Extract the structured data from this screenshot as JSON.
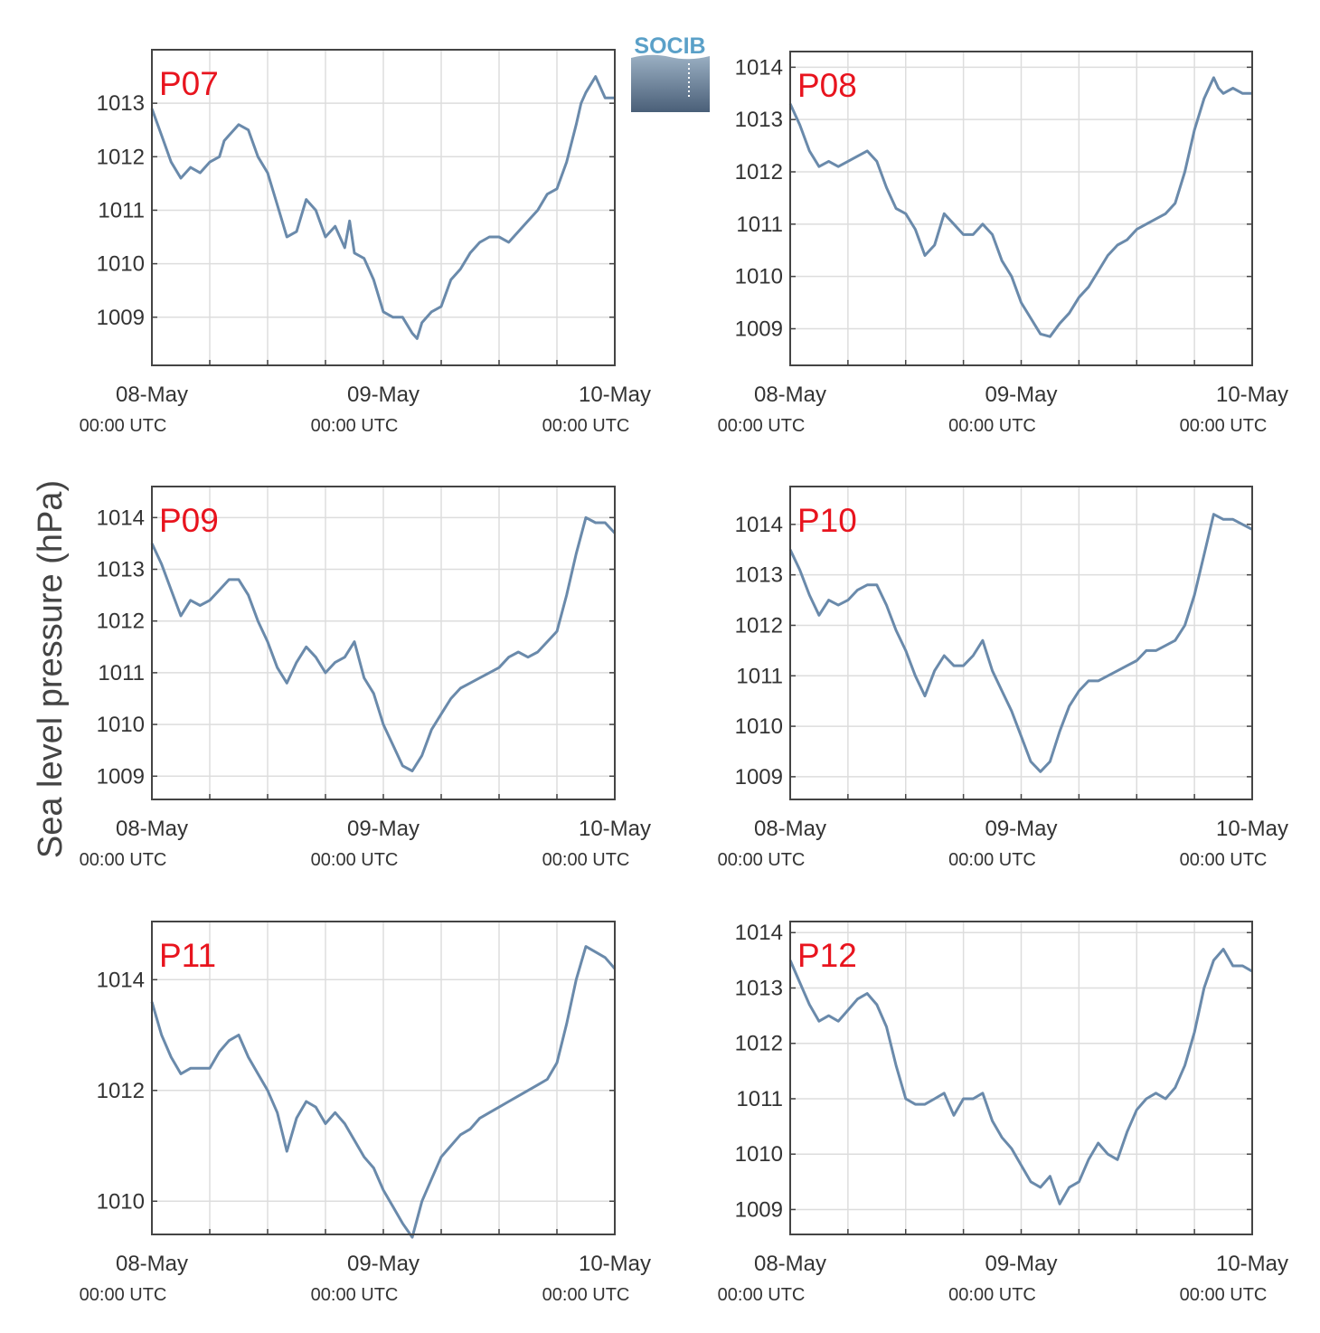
{
  "figure": {
    "ylabel": "Sea level pressure (hPa)",
    "logo_text": "SOCIB",
    "colors": {
      "line": "#6a8aab",
      "title": "#e8141e",
      "grid": "#dddddd",
      "axis": "#444444"
    }
  },
  "chart_data": [
    {
      "type": "line",
      "title": "P07",
      "x_ticks": [
        {
          "date": "08-May",
          "time": "00:00 UTC"
        },
        {
          "date": "09-May",
          "time": "00:00 UTC"
        },
        {
          "date": "10-May",
          "time": "00:00 UTC"
        }
      ],
      "x_range_hours": [
        0,
        48
      ],
      "ylim": [
        1008.1,
        1014.0
      ],
      "yticks": [
        1009,
        1010,
        1011,
        1012,
        1013
      ],
      "series": [
        {
          "x": [
            0,
            1,
            2,
            3,
            4,
            5,
            6,
            7,
            7.5,
            8,
            9,
            10,
            11,
            12,
            13,
            14,
            15,
            16,
            17,
            18,
            19,
            20,
            20.5,
            21,
            22,
            23,
            24,
            25,
            26,
            27,
            27.5,
            28,
            29,
            30,
            31,
            32,
            33,
            34,
            35,
            36,
            37,
            38,
            39,
            40,
            41,
            42,
            43,
            44,
            44.5,
            45,
            46,
            47,
            48
          ],
          "y": [
            1012.9,
            1012.4,
            1011.9,
            1011.6,
            1011.8,
            1011.7,
            1011.9,
            1012.0,
            1012.3,
            1012.4,
            1012.6,
            1012.5,
            1012.0,
            1011.7,
            1011.1,
            1010.5,
            1010.6,
            1011.2,
            1011.0,
            1010.5,
            1010.7,
            1010.3,
            1010.8,
            1010.2,
            1010.1,
            1009.7,
            1009.1,
            1009.0,
            1009.0,
            1008.7,
            1008.6,
            1008.9,
            1009.1,
            1009.2,
            1009.7,
            1009.9,
            1010.2,
            1010.4,
            1010.5,
            1010.5,
            1010.4,
            1010.6,
            1010.8,
            1011.0,
            1011.3,
            1011.4,
            1011.9,
            1012.6,
            1013.0,
            1013.2,
            1013.5,
            1013.1,
            1013.1
          ]
        }
      ]
    },
    {
      "type": "line",
      "title": "P08",
      "x_ticks": [
        {
          "date": "08-May",
          "time": "00:00 UTC"
        },
        {
          "date": "09-May",
          "time": "00:00 UTC"
        },
        {
          "date": "10-May",
          "time": "00:00 UTC"
        }
      ],
      "x_range_hours": [
        0,
        48
      ],
      "ylim": [
        1008.3,
        1014.3
      ],
      "yticks": [
        1009,
        1010,
        1011,
        1012,
        1013,
        1014
      ],
      "series": [
        {
          "x": [
            0,
            1,
            2,
            3,
            4,
            5,
            6,
            7,
            8,
            9,
            10,
            11,
            12,
            13,
            14,
            15,
            16,
            17,
            18,
            19,
            20,
            21,
            22,
            23,
            24,
            25,
            26,
            27,
            28,
            29,
            30,
            31,
            32,
            33,
            34,
            35,
            36,
            37,
            38,
            39,
            40,
            41,
            42,
            43,
            44,
            44.5,
            45,
            46,
            47,
            48
          ],
          "y": [
            1013.3,
            1012.9,
            1012.4,
            1012.1,
            1012.2,
            1012.1,
            1012.2,
            1012.3,
            1012.4,
            1012.2,
            1011.7,
            1011.3,
            1011.2,
            1010.9,
            1010.4,
            1010.6,
            1011.2,
            1011.0,
            1010.8,
            1010.8,
            1011.0,
            1010.8,
            1010.3,
            1010.0,
            1009.5,
            1009.2,
            1008.9,
            1008.85,
            1009.1,
            1009.3,
            1009.6,
            1009.8,
            1010.1,
            1010.4,
            1010.6,
            1010.7,
            1010.9,
            1011.0,
            1011.1,
            1011.2,
            1011.4,
            1012.0,
            1012.8,
            1013.4,
            1013.8,
            1013.6,
            1013.5,
            1013.6,
            1013.5,
            1013.5
          ]
        }
      ]
    },
    {
      "type": "line",
      "title": "P09",
      "x_ticks": [
        {
          "date": "08-May",
          "time": "00:00 UTC"
        },
        {
          "date": "09-May",
          "time": "00:00 UTC"
        },
        {
          "date": "10-May",
          "time": "00:00 UTC"
        }
      ],
      "x_range_hours": [
        0,
        48
      ],
      "ylim": [
        1008.55,
        1014.6
      ],
      "yticks": [
        1009,
        1010,
        1011,
        1012,
        1013,
        1014
      ],
      "series": [
        {
          "x": [
            0,
            1,
            2,
            3,
            4,
            5,
            6,
            7,
            8,
            9,
            10,
            11,
            12,
            13,
            14,
            15,
            16,
            17,
            18,
            19,
            20,
            21,
            22,
            23,
            24,
            25,
            26,
            27,
            28,
            29,
            30,
            31,
            32,
            33,
            34,
            35,
            36,
            37,
            38,
            39,
            40,
            41,
            42,
            43,
            44,
            45,
            46,
            47,
            48
          ],
          "y": [
            1013.5,
            1013.1,
            1012.6,
            1012.1,
            1012.4,
            1012.3,
            1012.4,
            1012.6,
            1012.8,
            1012.8,
            1012.5,
            1012.0,
            1011.6,
            1011.1,
            1010.8,
            1011.2,
            1011.5,
            1011.3,
            1011.0,
            1011.2,
            1011.3,
            1011.6,
            1010.9,
            1010.6,
            1010.0,
            1009.6,
            1009.2,
            1009.1,
            1009.4,
            1009.9,
            1010.2,
            1010.5,
            1010.7,
            1010.8,
            1010.9,
            1011.0,
            1011.1,
            1011.3,
            1011.4,
            1011.3,
            1011.4,
            1011.6,
            1011.8,
            1012.5,
            1013.3,
            1014.0,
            1013.9,
            1013.9,
            1013.7
          ]
        }
      ]
    },
    {
      "type": "line",
      "title": "P10",
      "x_ticks": [
        {
          "date": "08-May",
          "time": "00:00 UTC"
        },
        {
          "date": "09-May",
          "time": "00:00 UTC"
        },
        {
          "date": "10-May",
          "time": "00:00 UTC"
        }
      ],
      "x_range_hours": [
        0,
        48
      ],
      "ylim": [
        1008.55,
        1014.75
      ],
      "yticks": [
        1009,
        1010,
        1011,
        1012,
        1013,
        1014
      ],
      "series": [
        {
          "x": [
            0,
            1,
            2,
            3,
            4,
            5,
            6,
            7,
            8,
            9,
            10,
            11,
            12,
            13,
            14,
            15,
            16,
            17,
            18,
            19,
            20,
            21,
            22,
            23,
            24,
            25,
            26,
            27,
            28,
            29,
            30,
            31,
            32,
            33,
            34,
            35,
            36,
            37,
            38,
            39,
            40,
            41,
            42,
            43,
            44,
            45,
            46,
            47,
            48
          ],
          "y": [
            1013.5,
            1013.1,
            1012.6,
            1012.2,
            1012.5,
            1012.4,
            1012.5,
            1012.7,
            1012.8,
            1012.8,
            1012.4,
            1011.9,
            1011.5,
            1011.0,
            1010.6,
            1011.1,
            1011.4,
            1011.2,
            1011.2,
            1011.4,
            1011.7,
            1011.1,
            1010.7,
            1010.3,
            1009.8,
            1009.3,
            1009.1,
            1009.3,
            1009.9,
            1010.4,
            1010.7,
            1010.9,
            1010.9,
            1011.0,
            1011.1,
            1011.2,
            1011.3,
            1011.5,
            1011.5,
            1011.6,
            1011.7,
            1012.0,
            1012.6,
            1013.4,
            1014.2,
            1014.1,
            1014.1,
            1014.0,
            1013.9
          ]
        }
      ]
    },
    {
      "type": "line",
      "title": "P11",
      "x_ticks": [
        {
          "date": "08-May",
          "time": "00:00 UTC"
        },
        {
          "date": "09-May",
          "time": "00:00 UTC"
        },
        {
          "date": "10-May",
          "time": "00:00 UTC"
        }
      ],
      "x_range_hours": [
        0,
        48
      ],
      "ylim": [
        1009.4,
        1015.05
      ],
      "yticks": [
        1010,
        1012,
        1014
      ],
      "series": [
        {
          "x": [
            0,
            1,
            2,
            3,
            4,
            5,
            6,
            7,
            8,
            9,
            10,
            11,
            12,
            13,
            14,
            15,
            16,
            17,
            18,
            19,
            20,
            21,
            22,
            23,
            24,
            25,
            26,
            27,
            28,
            29,
            30,
            31,
            32,
            33,
            34,
            35,
            36,
            37,
            38,
            39,
            40,
            41,
            42,
            43,
            44,
            45,
            46,
            47,
            48
          ],
          "y": [
            1013.6,
            1013.0,
            1012.6,
            1012.3,
            1012.4,
            1012.4,
            1012.4,
            1012.7,
            1012.9,
            1013.0,
            1012.6,
            1012.3,
            1012.0,
            1011.6,
            1010.9,
            1011.5,
            1011.8,
            1011.7,
            1011.4,
            1011.6,
            1011.4,
            1011.1,
            1010.8,
            1010.6,
            1010.2,
            1009.9,
            1009.6,
            1009.35,
            1010.0,
            1010.4,
            1010.8,
            1011.0,
            1011.2,
            1011.3,
            1011.5,
            1011.6,
            1011.7,
            1011.8,
            1011.9,
            1012.0,
            1012.1,
            1012.2,
            1012.5,
            1013.2,
            1014.0,
            1014.6,
            1014.5,
            1014.4,
            1014.2
          ]
        }
      ]
    },
    {
      "type": "line",
      "title": "P12",
      "x_ticks": [
        {
          "date": "08-May",
          "time": "00:00 UTC"
        },
        {
          "date": "09-May",
          "time": "00:00 UTC"
        },
        {
          "date": "10-May",
          "time": "00:00 UTC"
        }
      ],
      "x_range_hours": [
        0,
        48
      ],
      "ylim": [
        1008.55,
        1014.2
      ],
      "yticks": [
        1009,
        1010,
        1011,
        1012,
        1013,
        1014
      ],
      "series": [
        {
          "x": [
            0,
            1,
            2,
            3,
            4,
            5,
            6,
            7,
            8,
            9,
            10,
            11,
            12,
            13,
            14,
            15,
            16,
            17,
            18,
            19,
            20,
            21,
            22,
            23,
            24,
            25,
            26,
            27,
            28,
            29,
            30,
            31,
            32,
            33,
            34,
            35,
            36,
            37,
            38,
            39,
            40,
            41,
            42,
            43,
            44,
            45,
            46,
            47,
            48
          ],
          "y": [
            1013.5,
            1013.1,
            1012.7,
            1012.4,
            1012.5,
            1012.4,
            1012.6,
            1012.8,
            1012.9,
            1012.7,
            1012.3,
            1011.6,
            1011.0,
            1010.9,
            1010.9,
            1011.0,
            1011.1,
            1010.7,
            1011.0,
            1011.0,
            1011.1,
            1010.6,
            1010.3,
            1010.1,
            1009.8,
            1009.5,
            1009.4,
            1009.6,
            1009.1,
            1009.4,
            1009.5,
            1009.9,
            1010.2,
            1010.0,
            1009.9,
            1010.4,
            1010.8,
            1011.0,
            1011.1,
            1011.0,
            1011.2,
            1011.6,
            1012.2,
            1013.0,
            1013.5,
            1013.7,
            1013.4,
            1013.4,
            1013.3
          ]
        }
      ]
    }
  ]
}
